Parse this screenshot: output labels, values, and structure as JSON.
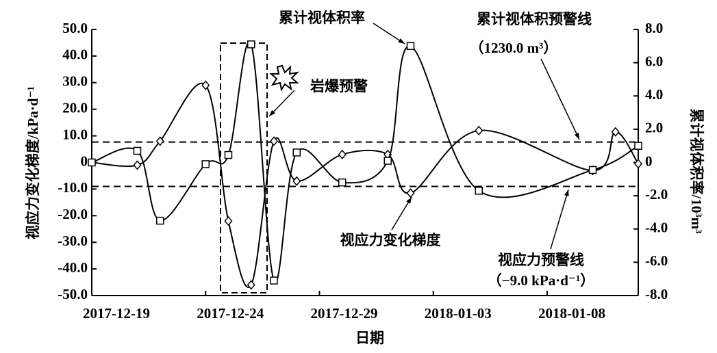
{
  "chart_data": {
    "type": "line",
    "x_label": "日期",
    "y_label": "视应力变化梯度/kPa·d⁻¹",
    "y2_label": "累计视体积率/10³m³",
    "xlim": [
      "2017-12-19",
      "2018-01-12"
    ],
    "xticks": [
      "2017-12-19",
      "2017-12-24",
      "2017-12-29",
      "2018-01-03",
      "2018-01-08"
    ],
    "ylim": [
      -50,
      50
    ],
    "yticks": [
      {
        "value": -50,
        "label": "-50.0"
      },
      {
        "value": -40,
        "label": "-40.0"
      },
      {
        "value": -30,
        "label": "-30.0"
      },
      {
        "value": -20,
        "label": "-20.0"
      },
      {
        "value": -10,
        "label": "-10.0"
      },
      0,
      {
        "value": 10,
        "label": "10.0"
      },
      {
        "value": 20,
        "label": "20.0"
      },
      {
        "value": 30,
        "label": "30.0"
      },
      {
        "value": 40,
        "label": "40.0"
      },
      {
        "value": 50,
        "label": "50.0"
      }
    ],
    "y2lim": [
      -8,
      8
    ],
    "y2ticks": [
      {
        "value": -8,
        "label": "-8.0"
      },
      {
        "value": -6,
        "label": "-6.0"
      },
      {
        "value": -4,
        "label": "-4.0"
      },
      {
        "value": -2,
        "label": "-2.0"
      },
      0,
      {
        "value": 2,
        "label": "2.0"
      },
      {
        "value": 4,
        "label": "4.0"
      },
      {
        "value": 6,
        "label": "6.0"
      },
      {
        "value": 8,
        "label": "8.0"
      }
    ],
    "series": [
      {
        "name": "视应力变化梯度",
        "color": "#000000",
        "marker": "diamond",
        "x": [
          "2017-12-19",
          "2017-12-21",
          "2017-12-22",
          "2017-12-24",
          "2017-12-25",
          "2017-12-26",
          "2017-12-27",
          "2017-12-28",
          "2017-12-30",
          "2018-01-01",
          "2018-01-02",
          "2018-01-05",
          "2018-01-10",
          "2018-01-11",
          "2018-01-12"
        ],
        "values": [
          0,
          -1,
          8,
          29,
          -22,
          -46,
          8,
          -7,
          3,
          3,
          -11.5,
          12,
          -3,
          11.5,
          -0.5
        ]
      },
      {
        "name": "累计视体积率",
        "color": "#000000",
        "marker": "square",
        "axis": "y2",
        "x": [
          "2017-12-19",
          "2017-12-21",
          "2017-12-22",
          "2017-12-24",
          "2017-12-25",
          "2017-12-26",
          "2017-12-27",
          "2017-12-28",
          "2017-12-30",
          "2018-01-01",
          "2018-01-02",
          "2018-01-05",
          "2018-01-10",
          "2018-01-12"
        ],
        "values": [
          0,
          0.7,
          -3.5,
          -0.1,
          0.45,
          7.1,
          -7.1,
          0.6,
          -1.2,
          0.1,
          7.0,
          -1.7,
          -0.45,
          1.0
        ]
      }
    ],
    "reference_lines": [
      {
        "name": "累计视体积预警线",
        "axis": "y2",
        "value": 1.23,
        "label": "（1230.0 m³）"
      },
      {
        "name": "视应力预警线",
        "axis": "y",
        "value": -9.0,
        "label": "（−9.0 kPa·d⁻¹）"
      }
    ],
    "annotations": [
      "岩爆预警"
    ]
  }
}
